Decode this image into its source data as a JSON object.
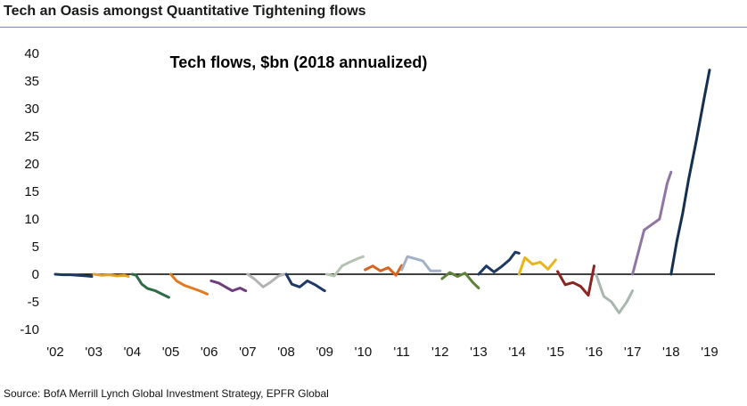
{
  "header": {
    "title": "Tech an Oasis amongst Quantitative Tightening flows"
  },
  "footer": {
    "source": "Source: BofA Merrill Lynch Global Investment Strategy, EPFR Global"
  },
  "chart_data": {
    "type": "line",
    "title": "Tech flows, $bn (2018 annualized)",
    "xlabel": "",
    "ylabel": "",
    "ylim": [
      -10,
      40
    ],
    "xlim": [
      2002,
      2019
    ],
    "y_ticks": [
      "40",
      "35",
      "30",
      "25",
      "20",
      "15",
      "10",
      "5",
      "0",
      "-5",
      "-10"
    ],
    "x_ticks": [
      {
        "x": 2002,
        "label": "'02"
      },
      {
        "x": 2003,
        "label": "'03"
      },
      {
        "x": 2004,
        "label": "'04"
      },
      {
        "x": 2005,
        "label": "'05"
      },
      {
        "x": 2006,
        "label": "'06"
      },
      {
        "x": 2007,
        "label": "'07"
      },
      {
        "x": 2008,
        "label": "'08"
      },
      {
        "x": 2009,
        "label": "'09"
      },
      {
        "x": 2010,
        "label": "'10"
      },
      {
        "x": 2011,
        "label": "'11"
      },
      {
        "x": 2012,
        "label": "'12"
      },
      {
        "x": 2013,
        "label": "'13"
      },
      {
        "x": 2014,
        "label": "'14"
      },
      {
        "x": 2015,
        "label": "'15"
      },
      {
        "x": 2016,
        "label": "'16"
      },
      {
        "x": 2017,
        "label": "'17"
      },
      {
        "x": 2018,
        "label": "'18"
      },
      {
        "x": 2019,
        "label": "'19"
      }
    ],
    "grid": false,
    "zero_line": true,
    "series": [
      {
        "color": "#1f3864",
        "points": [
          [
            2002.0,
            0.0
          ],
          [
            2002.2,
            -0.1
          ],
          [
            2002.4,
            -0.1
          ],
          [
            2002.6,
            -0.2
          ],
          [
            2002.8,
            -0.3
          ],
          [
            2002.95,
            -0.4
          ]
        ]
      },
      {
        "color": "#e2a12a",
        "points": [
          [
            2003.0,
            0.0
          ],
          [
            2003.2,
            -0.2
          ],
          [
            2003.4,
            -0.1
          ],
          [
            2003.6,
            -0.3
          ],
          [
            2003.8,
            -0.2
          ],
          [
            2003.9,
            -0.4
          ]
        ]
      },
      {
        "color": "#2e6b46",
        "points": [
          [
            2004.0,
            0.0
          ],
          [
            2004.1,
            -0.2
          ],
          [
            2004.25,
            -1.8
          ],
          [
            2004.4,
            -2.6
          ],
          [
            2004.6,
            -3.0
          ],
          [
            2004.8,
            -3.7
          ],
          [
            2004.95,
            -4.2
          ]
        ]
      },
      {
        "color": "#e07b22",
        "points": [
          [
            2005.0,
            0.0
          ],
          [
            2005.15,
            -1.2
          ],
          [
            2005.35,
            -2.0
          ],
          [
            2005.55,
            -2.5
          ],
          [
            2005.75,
            -3.0
          ],
          [
            2005.95,
            -3.6
          ]
        ]
      },
      {
        "color": "#6e3f7c",
        "points": [
          [
            2006.05,
            -1.2
          ],
          [
            2006.25,
            -1.6
          ],
          [
            2006.45,
            -2.4
          ],
          [
            2006.6,
            -3.0
          ],
          [
            2006.8,
            -2.5
          ],
          [
            2006.95,
            -3.0
          ]
        ]
      },
      {
        "color": "#b4b4b4",
        "points": [
          [
            2007.0,
            0.0
          ],
          [
            2007.2,
            -1.0
          ],
          [
            2007.4,
            -2.3
          ],
          [
            2007.6,
            -1.4
          ],
          [
            2007.8,
            -0.3
          ],
          [
            2007.95,
            0.0
          ]
        ]
      },
      {
        "color": "#1f3864",
        "points": [
          [
            2008.0,
            0.0
          ],
          [
            2008.15,
            -1.8
          ],
          [
            2008.35,
            -2.3
          ],
          [
            2008.55,
            -1.2
          ],
          [
            2008.75,
            -1.9
          ],
          [
            2008.95,
            -2.8
          ],
          [
            2009.0,
            -3.0
          ]
        ]
      },
      {
        "color": "#b5c4b1",
        "points": [
          [
            2009.05,
            0.0
          ],
          [
            2009.25,
            -0.3
          ],
          [
            2009.45,
            1.5
          ],
          [
            2009.65,
            2.2
          ],
          [
            2009.85,
            2.8
          ],
          [
            2010.0,
            3.2
          ]
        ]
      },
      {
        "color": "#d9641d",
        "points": [
          [
            2010.05,
            0.8
          ],
          [
            2010.25,
            1.5
          ],
          [
            2010.45,
            0.6
          ],
          [
            2010.65,
            1.2
          ],
          [
            2010.85,
            -0.2
          ],
          [
            2011.0,
            1.6
          ]
        ]
      },
      {
        "color": "#a2b1c6",
        "points": [
          [
            2011.0,
            0.8
          ],
          [
            2011.15,
            3.2
          ],
          [
            2011.35,
            2.8
          ],
          [
            2011.55,
            2.4
          ],
          [
            2011.75,
            0.6
          ],
          [
            2012.0,
            0.6
          ]
        ]
      },
      {
        "color": "#5e8237",
        "points": [
          [
            2012.05,
            -0.8
          ],
          [
            2012.25,
            0.3
          ],
          [
            2012.45,
            -0.4
          ],
          [
            2012.65,
            0.2
          ],
          [
            2012.85,
            -1.5
          ],
          [
            2013.0,
            -2.5
          ]
        ]
      },
      {
        "color": "#1f3864",
        "points": [
          [
            2013.0,
            0.0
          ],
          [
            2013.2,
            1.5
          ],
          [
            2013.4,
            0.4
          ],
          [
            2013.6,
            1.4
          ],
          [
            2013.8,
            2.6
          ],
          [
            2013.95,
            4.0
          ],
          [
            2014.05,
            3.8
          ]
        ]
      },
      {
        "color": "#e8b51e",
        "points": [
          [
            2014.05,
            0.0
          ],
          [
            2014.2,
            3.0
          ],
          [
            2014.4,
            1.8
          ],
          [
            2014.6,
            2.2
          ],
          [
            2014.8,
            0.9
          ],
          [
            2015.0,
            2.6
          ]
        ]
      },
      {
        "color": "#8a2522",
        "points": [
          [
            2015.05,
            0.5
          ],
          [
            2015.25,
            -1.9
          ],
          [
            2015.45,
            -1.5
          ],
          [
            2015.65,
            -2.2
          ],
          [
            2015.85,
            -3.8
          ],
          [
            2016.0,
            1.5
          ]
        ]
      },
      {
        "color": "#a9b7ae",
        "points": [
          [
            2016.05,
            0.0
          ],
          [
            2016.25,
            -4.0
          ],
          [
            2016.45,
            -5.0
          ],
          [
            2016.65,
            -7.0
          ],
          [
            2016.85,
            -5.0
          ],
          [
            2017.0,
            -3.0
          ]
        ]
      },
      {
        "color": "#8f76a2",
        "points": [
          [
            2017.0,
            0.0
          ],
          [
            2017.15,
            4.0
          ],
          [
            2017.3,
            8.0
          ],
          [
            2017.5,
            9.0
          ],
          [
            2017.7,
            10.0
          ],
          [
            2017.9,
            16.5
          ],
          [
            2018.0,
            18.5
          ]
        ]
      },
      {
        "color": "#14304f",
        "points": [
          [
            2018.0,
            0.0
          ],
          [
            2018.15,
            6.0
          ],
          [
            2018.3,
            11.0
          ],
          [
            2018.45,
            17.0
          ],
          [
            2018.65,
            24.0
          ],
          [
            2018.85,
            31.5
          ],
          [
            2019.0,
            37.0
          ]
        ]
      }
    ]
  }
}
